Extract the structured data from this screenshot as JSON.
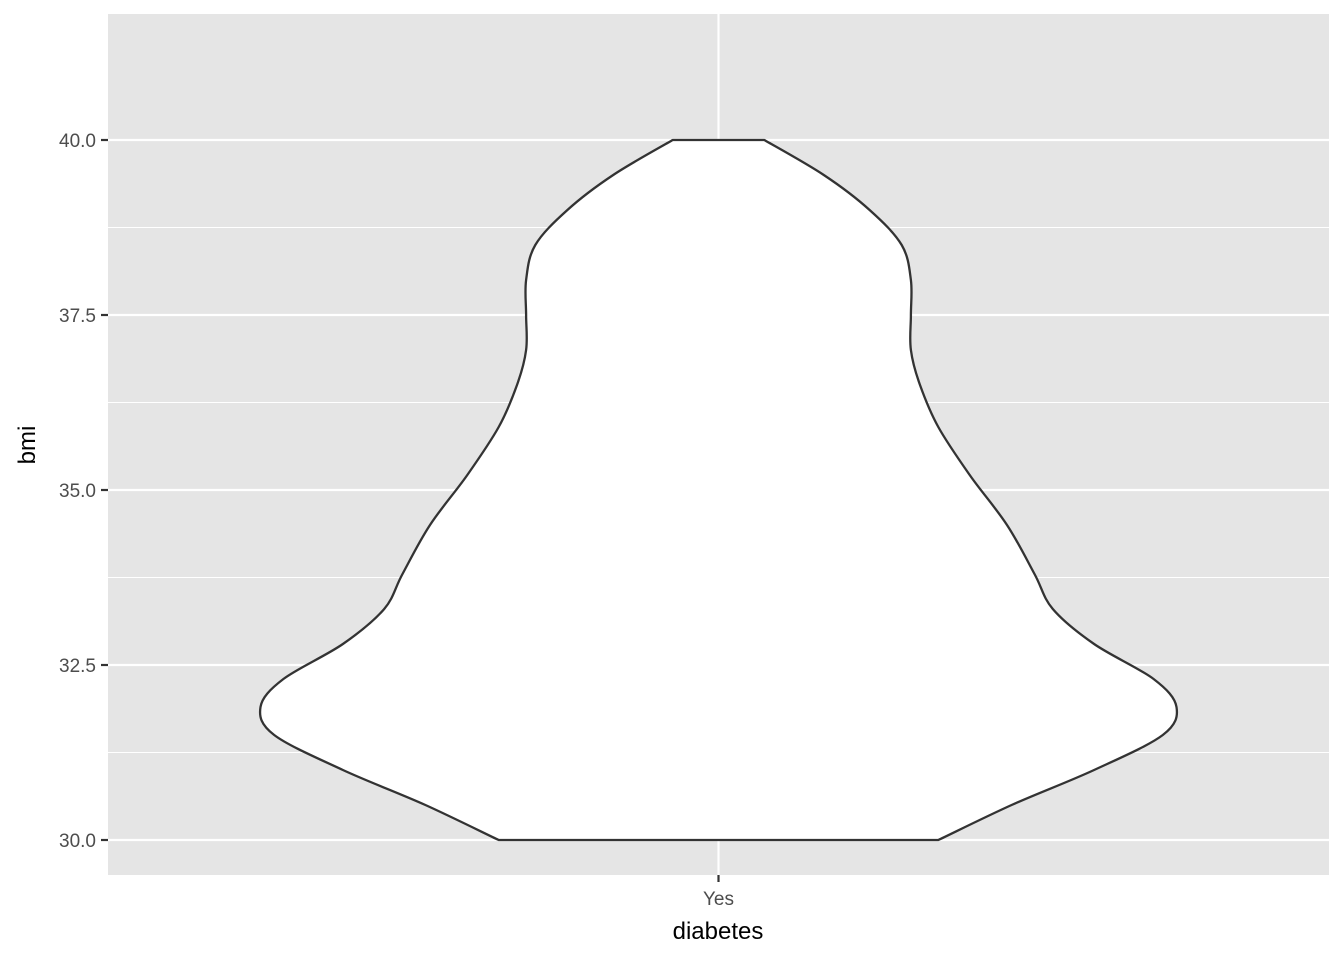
{
  "chart_data": {
    "type": "violin",
    "xlabel": "diabetes",
    "ylabel": "bmi",
    "categories": [
      "Yes"
    ],
    "ylim": [
      29.5,
      41.8
    ],
    "y_ticks": [
      30.0,
      32.5,
      35.0,
      37.5,
      40.0
    ],
    "y_tick_labels": [
      "30.0",
      "32.5",
      "35.0",
      "37.5",
      "40.0"
    ],
    "grid": true,
    "legend": "none",
    "violins": [
      {
        "category": "Yes",
        "min": 30.0,
        "max": 40.0,
        "density_profile": [
          {
            "y": 30.0,
            "w": 0.48
          },
          {
            "y": 30.5,
            "w": 0.64
          },
          {
            "y": 31.0,
            "w": 0.82
          },
          {
            "y": 31.5,
            "w": 0.97
          },
          {
            "y": 31.9,
            "w": 1.0
          },
          {
            "y": 32.3,
            "w": 0.95
          },
          {
            "y": 32.8,
            "w": 0.82
          },
          {
            "y": 33.3,
            "w": 0.73
          },
          {
            "y": 33.8,
            "w": 0.69
          },
          {
            "y": 34.5,
            "w": 0.63
          },
          {
            "y": 35.2,
            "w": 0.55
          },
          {
            "y": 35.9,
            "w": 0.48
          },
          {
            "y": 36.5,
            "w": 0.44
          },
          {
            "y": 37.0,
            "w": 0.42
          },
          {
            "y": 37.5,
            "w": 0.42
          },
          {
            "y": 38.0,
            "w": 0.42
          },
          {
            "y": 38.5,
            "w": 0.4
          },
          {
            "y": 39.0,
            "w": 0.33
          },
          {
            "y": 39.5,
            "w": 0.23
          },
          {
            "y": 40.0,
            "w": 0.1
          }
        ]
      }
    ]
  },
  "colors": {
    "panel_background": "#e5e5e5",
    "grid_line": "#ffffff",
    "violin_fill": "#ffffff",
    "violin_outline": "#333333",
    "tick_text": "#4d4d4d",
    "title_text": "#000000"
  }
}
